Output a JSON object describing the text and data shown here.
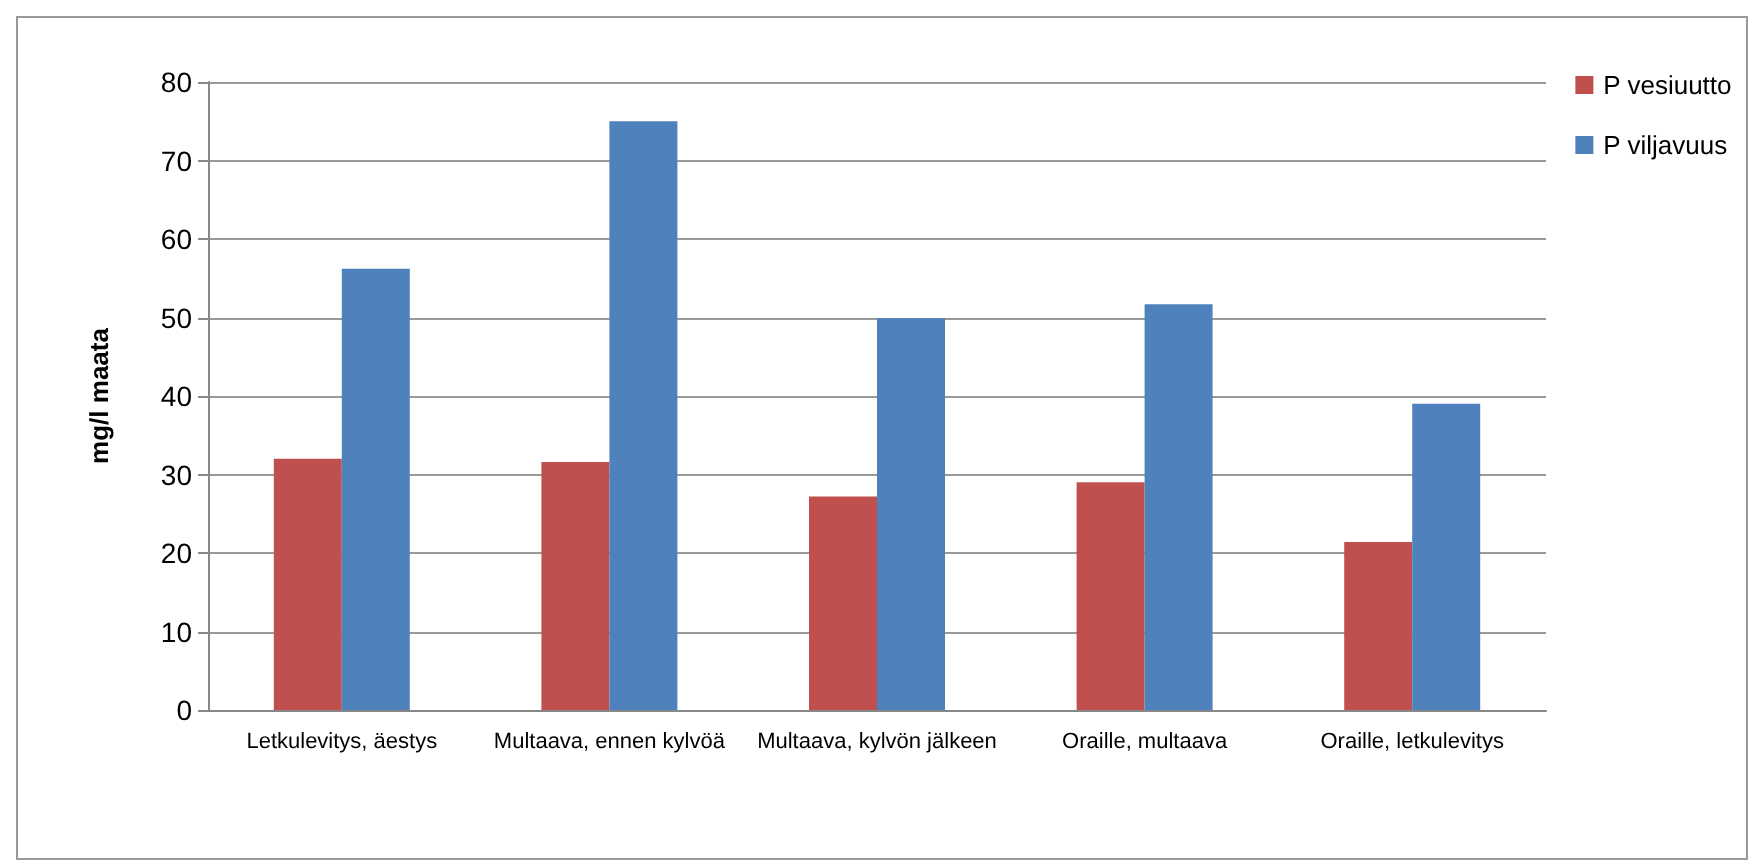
{
  "chart_data": {
    "type": "bar",
    "ylabel": "mg/l maata",
    "categories": [
      "Letkulevitys, äestys",
      "Multaava, ennen kylvöä",
      "Multaava, kylvön jälkeen",
      "Oraille, multaava",
      "Oraille, letkulevitys"
    ],
    "series": [
      {
        "name": "P vesiuutto",
        "color": "#c0504d",
        "values": [
          32.0,
          31.6,
          27.2,
          29.0,
          21.4
        ]
      },
      {
        "name": "P viljavuus",
        "color": "#4f81bd",
        "values": [
          56.2,
          75.0,
          49.9,
          51.7,
          39.0
        ]
      }
    ],
    "ylim": [
      0,
      80
    ],
    "yticks": [
      0,
      10,
      20,
      30,
      40,
      50,
      60,
      70,
      80
    ],
    "grid": "y",
    "legend": "top right"
  }
}
